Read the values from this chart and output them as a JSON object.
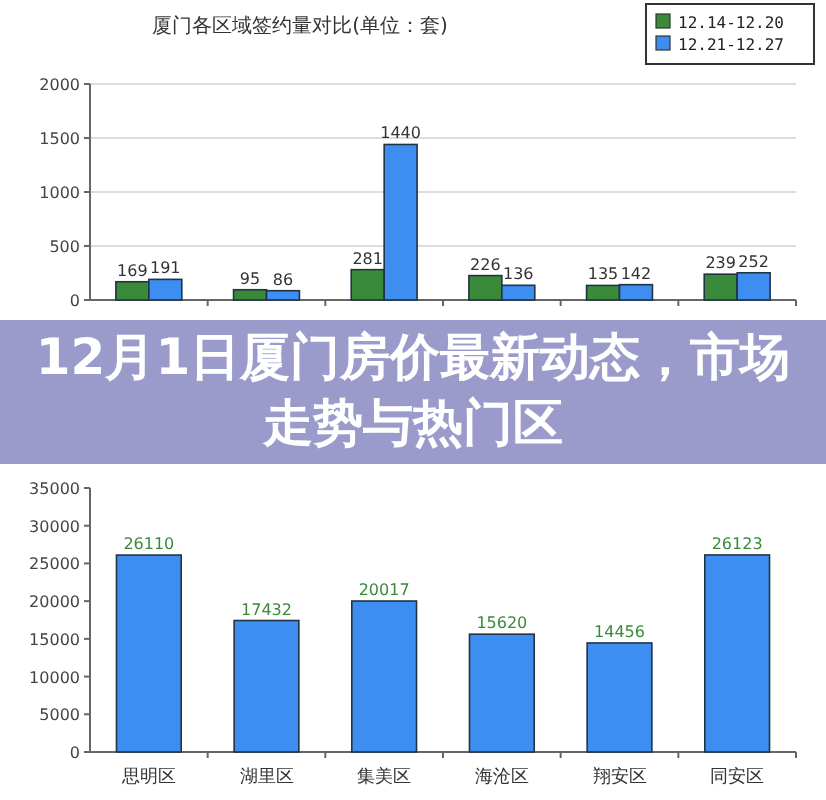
{
  "chart_data": [
    {
      "type": "bar",
      "title": "厦门各区域签约量对比(单位：套)",
      "categories": [
        null,
        null,
        null,
        null,
        null,
        null
      ],
      "ylim": [
        0,
        2000
      ],
      "yticks": [
        0,
        500,
        1000,
        1500,
        2000
      ],
      "grid": "y",
      "legend": "top right",
      "data_labels": true,
      "series": [
        {
          "name": "12.14-12.20",
          "color": "#3a8a3a",
          "values": [
            169,
            95,
            281,
            226,
            135,
            239
          ]
        },
        {
          "name": "12.21-12.27",
          "color": "#3d8ef0",
          "values": [
            191,
            86,
            1440,
            136,
            142,
            252
          ]
        }
      ]
    },
    {
      "type": "other",
      "title": "12月1日厦门房价最新动态，市场走势与热门区"
    },
    {
      "type": "bar",
      "categories": [
        "思明区",
        "湖里区",
        "集美区",
        "海沧区",
        "翔安区",
        "同安区"
      ],
      "ylim": [
        0,
        35000
      ],
      "yticks": [
        0,
        5000,
        10000,
        15000,
        20000,
        25000,
        30000,
        35000
      ],
      "data_labels": true,
      "series": [
        {
          "color": "#3d8ef0",
          "values": [
            26110,
            17432,
            20017,
            15620,
            14456,
            26123
          ]
        }
      ]
    }
  ]
}
